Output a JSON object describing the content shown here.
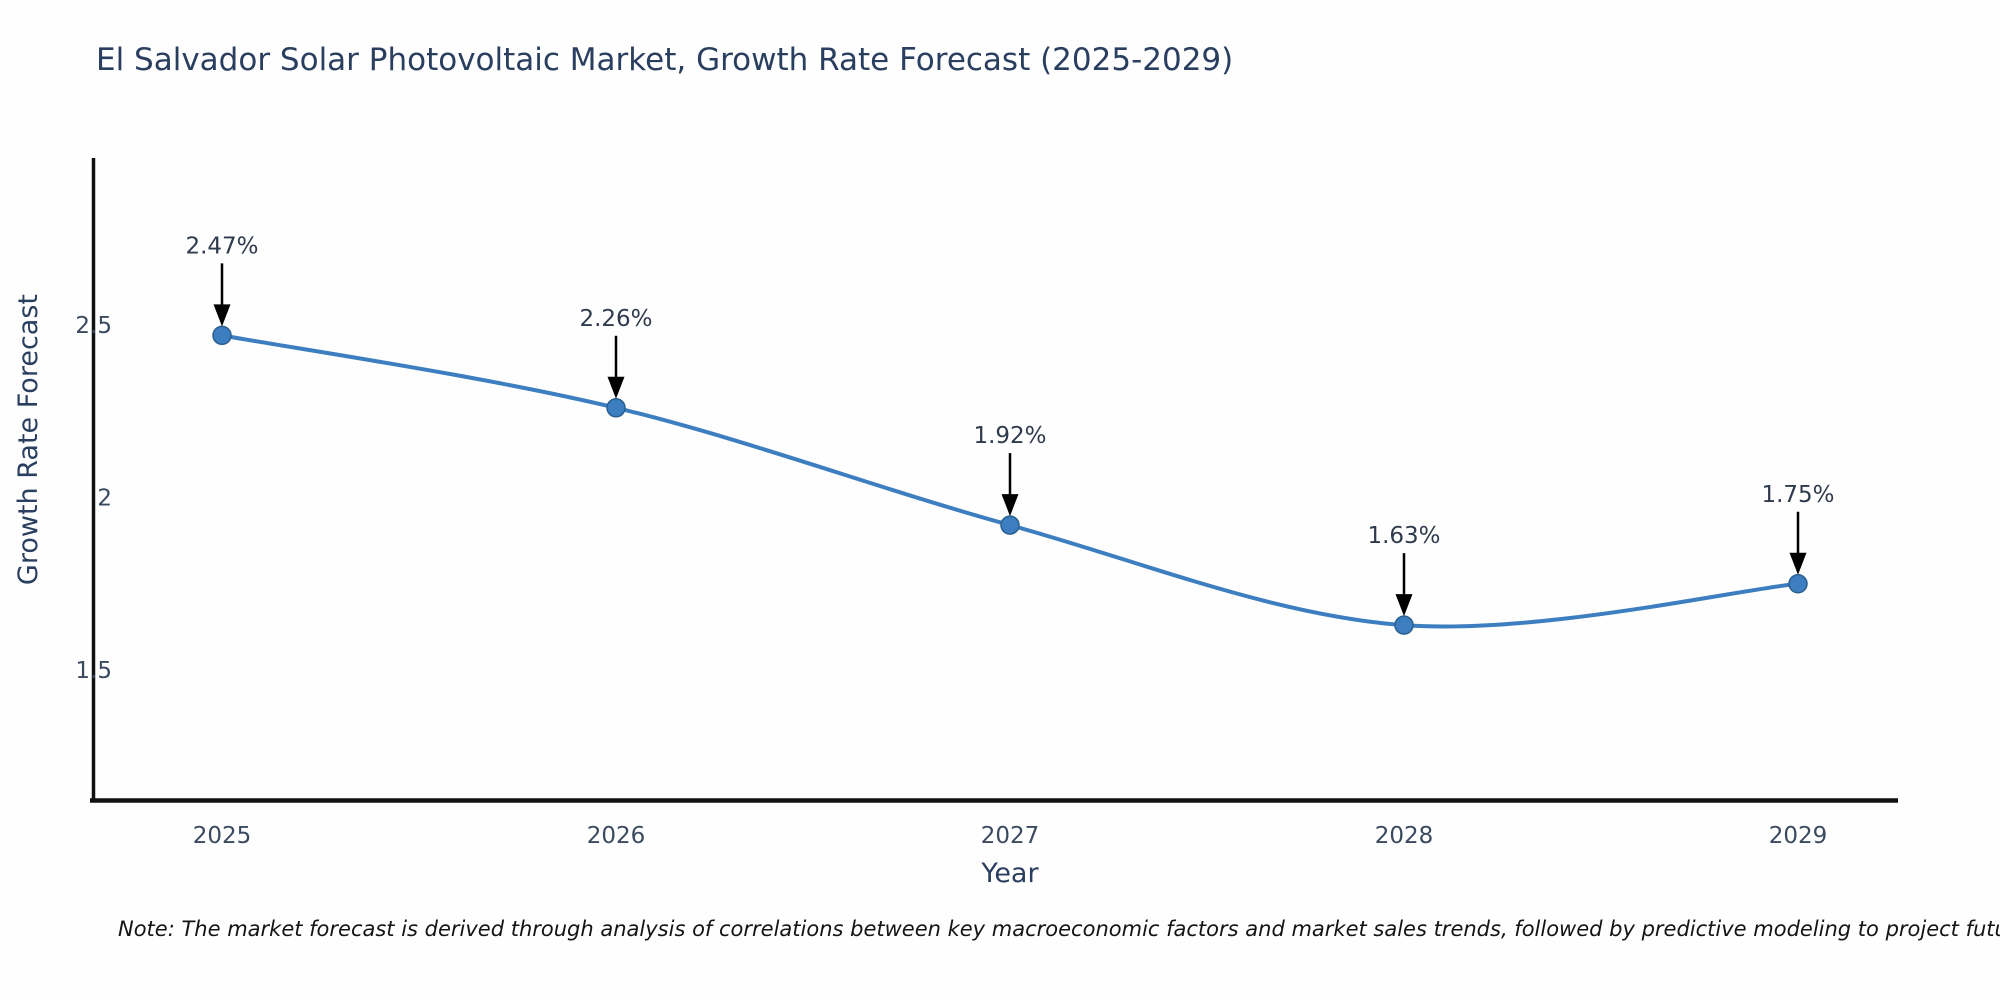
{
  "chart_data": {
    "type": "line",
    "title": "El Salvador Solar Photovoltaic Market, Growth Rate Forecast (2025-2029)",
    "xlabel": "Year",
    "ylabel": "Growth Rate Forecast",
    "x": [
      "2025",
      "2026",
      "2027",
      "2028",
      "2029"
    ],
    "series": [
      {
        "name": "Growth Rate Forecast",
        "values": [
          2.47,
          2.26,
          1.92,
          1.63,
          1.75
        ]
      }
    ],
    "point_labels": [
      "2.47%",
      "2.26%",
      "1.92%",
      "1.63%",
      "1.75%"
    ],
    "yticks": [
      2.5,
      2,
      1.5
    ],
    "ylim": [
      1.12,
      2.98
    ],
    "line_shape": "spline",
    "grid": false,
    "legend": "none",
    "note": "Note: The market forecast is derived through analysis of correlations between key macroeconomic factors and market sales trends, followed by predictive modeling to project future sales",
    "colors": {
      "line": "#3c7ebf",
      "marker": "#3c7ebf",
      "marker_edge": "#2a5f8f",
      "annotation_text": "#2f3b4c",
      "annotation_arrow": "#000000",
      "tick_text": "#3b4a5f",
      "axis_line": "#111111",
      "title_text": "#2a3f5f"
    }
  }
}
